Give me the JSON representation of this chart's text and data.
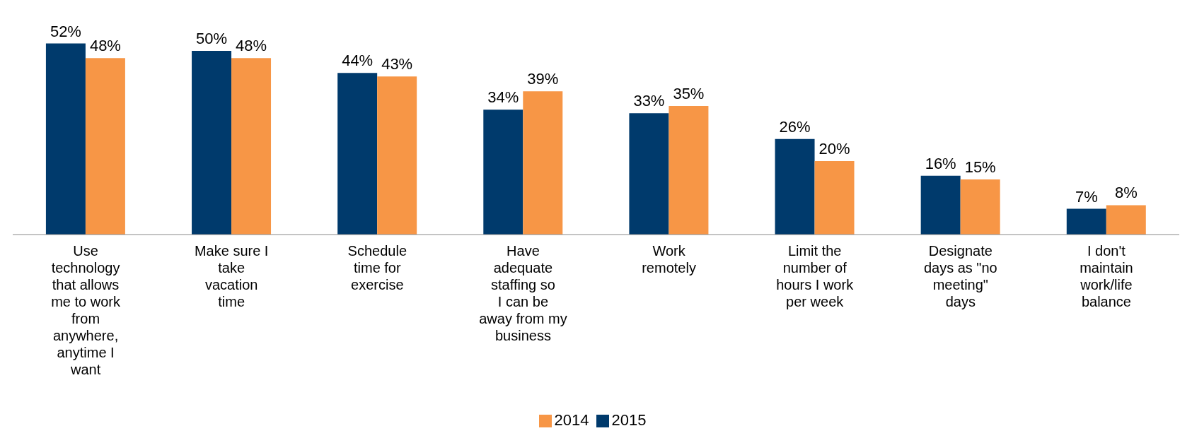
{
  "chart_data": {
    "type": "bar",
    "categories": [
      "Use technology that allows me to work from anywhere, anytime I want",
      "Make sure I take vacation time",
      "Schedule time for exercise",
      "Have adequate staffing so I can be away from my business",
      "Work remotely",
      "Limit the number of hours I work per week",
      "Designate days as \"no meeting\" days",
      "I don't maintain work/life balance"
    ],
    "series": [
      {
        "name": "2015",
        "color": "#003a6c",
        "values": [
          52,
          50,
          44,
          34,
          33,
          26,
          16,
          7
        ],
        "value_labels": [
          "52%",
          "50%",
          "44%",
          "34%",
          "33%",
          "26%",
          "16%",
          "7%"
        ]
      },
      {
        "name": "2014",
        "color": "#f79646",
        "values": [
          48,
          48,
          43,
          39,
          35,
          20,
          15,
          8
        ],
        "value_labels": [
          "48%",
          "48%",
          "43%",
          "39%",
          "35%",
          "20%",
          "15%",
          "8%"
        ]
      }
    ],
    "legend": "bottom",
    "grid": false
  }
}
